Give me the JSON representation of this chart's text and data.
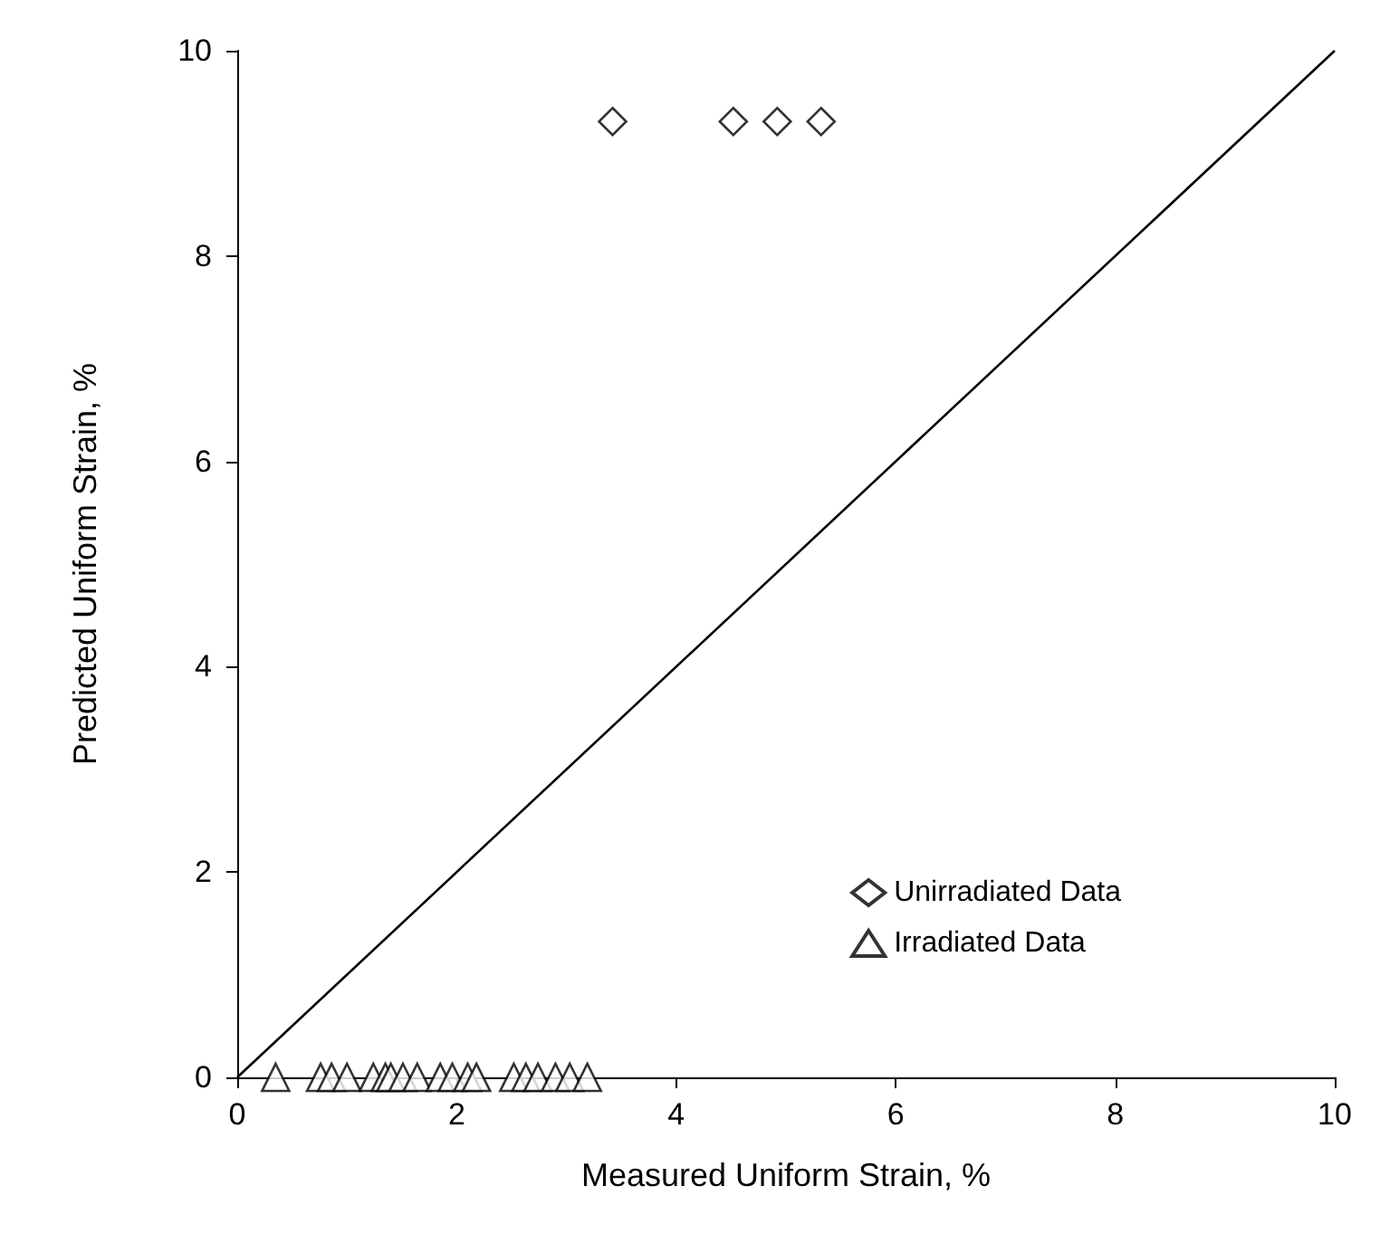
{
  "chart_data": {
    "type": "scatter",
    "xlabel": "Measured Uniform Strain, %",
    "ylabel": "Predicted Uniform Strain, %",
    "xlim": [
      0,
      10
    ],
    "ylim": [
      0,
      10
    ],
    "xticks": [
      0,
      2,
      4,
      6,
      8,
      10
    ],
    "yticks": [
      0,
      2,
      4,
      6,
      8,
      10
    ],
    "grid": false,
    "legend": "bottom right",
    "series": [
      {
        "name": "Unirradiated Data",
        "color": "#000000",
        "marker": "diamond",
        "x": [
          3.42,
          4.52,
          4.92,
          5.32
        ],
        "values": [
          9.31,
          9.31,
          9.31,
          9.31
        ]
      },
      {
        "name": "Irradiated Data",
        "color": "#000000",
        "marker": "triangle",
        "x": [
          0.35,
          0.76,
          0.86,
          1.0,
          1.24,
          1.35,
          1.4,
          1.51,
          1.64,
          1.85,
          1.96,
          2.1,
          2.18,
          2.52,
          2.63,
          2.74,
          2.9,
          3.03,
          3.19
        ],
        "values": [
          0,
          0,
          0,
          0,
          0,
          0,
          0,
          0,
          0,
          0,
          0,
          0,
          0,
          0,
          0,
          0,
          0,
          0,
          0
        ]
      },
      {
        "type": "line",
        "color": "#000000",
        "marker": "none",
        "line_style": "solid",
        "x": [
          0,
          10
        ],
        "values": [
          0,
          10
        ]
      }
    ]
  }
}
